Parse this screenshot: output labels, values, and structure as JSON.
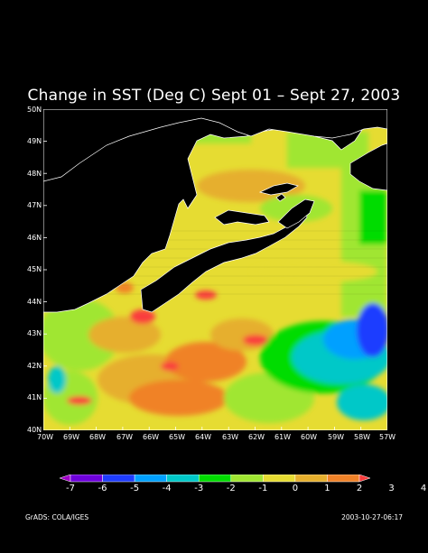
{
  "title": "Change in SST (Deg C) Sept 01 – Sept 27, 2003",
  "lat_labels": [
    "50N",
    "49N",
    "48N",
    "47N",
    "46N",
    "45N",
    "44N",
    "43N",
    "42N",
    "41N",
    "40N"
  ],
  "lon_labels": [
    "70W",
    "69W",
    "68W",
    "67W",
    "66W",
    "65W",
    "64W",
    "63W",
    "62W",
    "61W",
    "60W",
    "59W",
    "58W",
    "57W"
  ],
  "colorbar": {
    "labels": [
      "-7",
      "-6",
      "-5",
      "-4",
      "-3",
      "-2",
      "-1",
      "0",
      "1",
      "2",
      "3",
      "4"
    ],
    "colors": [
      "#a000c8",
      "#6e00dc",
      "#1e3cff",
      "#00a0ff",
      "#00c8c8",
      "#00dc00",
      "#a0e632",
      "#e6dc32",
      "#e6af2d",
      "#f08228",
      "#fa3c3c"
    ]
  },
  "footer_left": "GrADS: COLA/IGES",
  "footer_right": "2003-10-27-06:17",
  "colors": {
    "land": "#000000",
    "coast": "#ffffff",
    "background": "#000000"
  }
}
